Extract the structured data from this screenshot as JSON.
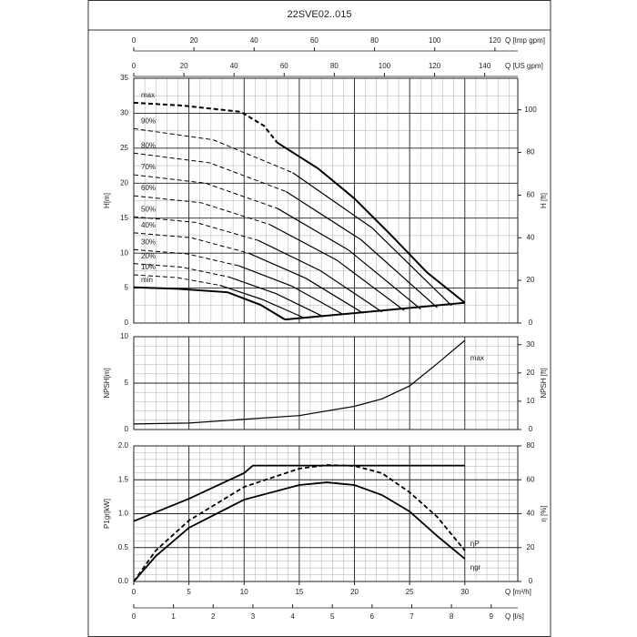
{
  "chart_data": [
    {
      "type": "line",
      "title": "22SVE02..015",
      "ylabel": "H[m]",
      "y2label": "H [ft]",
      "xlim": [
        0,
        34.8
      ],
      "xticks": [
        0,
        5,
        10,
        15,
        20,
        25,
        30
      ],
      "ylim": [
        0,
        35
      ],
      "yticks": [
        0,
        5,
        10,
        15,
        20,
        25,
        30,
        35
      ],
      "y2lim": [
        0,
        114.8
      ],
      "y2ticks": [
        0,
        20,
        40,
        60,
        80,
        100
      ],
      "x_imp": {
        "label": "Q [Imp gpm]",
        "xlim": [
          0,
          127.6
        ],
        "xticks": [
          0,
          20,
          40,
          60,
          80,
          100,
          120
        ]
      },
      "x_us": {
        "label": "Q [US gpm]",
        "xlim": [
          0,
          153.2
        ],
        "xticks": [
          0,
          20,
          40,
          60,
          80,
          100,
          120,
          140
        ]
      },
      "grid": true,
      "color": "#000000",
      "series": [
        {
          "name": "max",
          "dashed": {
            "x": [
              0,
              4.4,
              9.7,
              11.8,
              13
            ],
            "values": [
              31.5,
              31.1,
              30.2,
              28.2,
              25.8
            ]
          },
          "solid": {
            "x": [
              13,
              16.7,
              20,
              23.3,
              26.6,
              30
            ],
            "values": [
              25.8,
              22.1,
              17.8,
              12.6,
              7.2,
              2.9
            ]
          }
        },
        {
          "name": "90%",
          "dashed": {
            "x": [
              0,
              7.2,
              14.4
            ],
            "values": [
              27.8,
              26.2,
              21.5
            ]
          },
          "solid": {
            "x": [
              14.4,
              21.6,
              28.8
            ],
            "values": [
              21.5,
              13.6,
              2.5
            ]
          }
        },
        {
          "name": "80%",
          "dashed": {
            "x": [
              0,
              6.9,
              13.8
            ],
            "values": [
              24.3,
              22.9,
              18.8
            ]
          },
          "solid": {
            "x": [
              13.8,
              20.6,
              27.5
            ],
            "values": [
              18.8,
              11.9,
              2.2
            ]
          }
        },
        {
          "name": "70%",
          "dashed": {
            "x": [
              0,
              6.5,
              13
            ],
            "values": [
              21.2,
              20.0,
              16.4
            ]
          },
          "solid": {
            "x": [
              13,
              19.5,
              26
            ],
            "values": [
              16.4,
              10.4,
              2.0
            ]
          }
        },
        {
          "name": "60%",
          "dashed": {
            "x": [
              0,
              6.1,
              12.3
            ],
            "values": [
              18.2,
              17.2,
              14.1
            ]
          },
          "solid": {
            "x": [
              12.3,
              18.4,
              24.5
            ],
            "values": [
              14.1,
              9.0,
              1.8
            ]
          }
        },
        {
          "name": "50%",
          "dashed": {
            "x": [
              0,
              5.6,
              11.3
            ],
            "values": [
              15.2,
              14.4,
              11.8
            ]
          },
          "solid": {
            "x": [
              11.3,
              16.9,
              22.5
            ],
            "values": [
              11.8,
              7.5,
              1.6
            ]
          }
        },
        {
          "name": "40%",
          "dashed": {
            "x": [
              0,
              5.2,
              10.4
            ],
            "values": [
              12.9,
              12.2,
              10.0
            ]
          },
          "solid": {
            "x": [
              10.4,
              15.6,
              20.8
            ],
            "values": [
              10.0,
              6.4,
              1.4
            ]
          }
        },
        {
          "name": "30%",
          "dashed": {
            "x": [
              0,
              4.8,
              9.5
            ],
            "values": [
              10.5,
              9.9,
              8.2
            ]
          },
          "solid": {
            "x": [
              9.5,
              14.3,
              19
            ],
            "values": [
              8.2,
              5.3,
              1.2
            ]
          }
        },
        {
          "name": "20%",
          "dashed": {
            "x": [
              0,
              4.3,
              8.6
            ],
            "values": [
              8.5,
              8.0,
              6.6
            ]
          },
          "solid": {
            "x": [
              8.6,
              12.9,
              17.2
            ],
            "values": [
              6.6,
              4.2,
              0.9
            ]
          }
        },
        {
          "name": "10%",
          "dashed": {
            "x": [
              0,
              3.9,
              7.8
            ],
            "values": [
              6.9,
              6.5,
              5.4
            ]
          },
          "solid": {
            "x": [
              7.8,
              11.6,
              15.5
            ],
            "values": [
              5.4,
              3.4,
              0.7
            ]
          }
        },
        {
          "name": "min",
          "solid": {
            "x": [
              0,
              4,
              8.5,
              11.5,
              13.7
            ],
            "values": [
              5.1,
              4.9,
              4.4,
              2.6,
              0.5
            ]
          }
        },
        {
          "solid": {
            "x": [
              13.7,
              30
            ],
            "values": [
              0.5,
              2.9
            ]
          }
        }
      ]
    },
    {
      "type": "line",
      "ylabel": "NPSH[m]",
      "y2label": "NPSH [ft]",
      "xlim": [
        0,
        34.8
      ],
      "xticks": [
        0,
        5,
        10,
        15,
        20,
        25,
        30
      ],
      "ylim": [
        0,
        10
      ],
      "yticks": [
        0,
        5,
        10
      ],
      "y2lim": [
        0,
        32.8
      ],
      "y2ticks": [
        0,
        10,
        20,
        30
      ],
      "grid": true,
      "color": "#000000",
      "series": [
        {
          "name": "max",
          "solid": {
            "x": [
              0,
              5,
              10,
              15,
              20,
              22.5,
              25,
              27.5,
              30
            ],
            "values": [
              0.6,
              0.7,
              1.1,
              1.5,
              2.5,
              3.3,
              4.7,
              7.1,
              9.6
            ]
          }
        }
      ]
    },
    {
      "type": "line",
      "ylabel": "P1gr[kW]",
      "y2label": "η [%]",
      "xlabel": "Q [m³/h]",
      "xlim": [
        0,
        34.8
      ],
      "xticks": [
        0,
        5,
        10,
        15,
        20,
        25,
        30
      ],
      "ylim": [
        0,
        2.0
      ],
      "yticks": [
        {
          "value": 0,
          "label": "0.0"
        },
        0.5,
        {
          "value": 1,
          "label": "1.0"
        },
        1.5,
        {
          "value": 2,
          "label": "2.0"
        }
      ],
      "y2lim": [
        0,
        80
      ],
      "y2ticks": [
        0,
        20,
        40,
        60,
        80
      ],
      "x_ls": {
        "label": "Q [l/s]",
        "xlim": [
          0,
          9.67
        ],
        "xticks": [
          0,
          1,
          2,
          3,
          4,
          5,
          6,
          7,
          8,
          9
        ]
      },
      "grid": true,
      "color": "#000000",
      "series": [
        {
          "solid": {
            "x": [
              0,
              5,
              10,
              10.8,
              30
            ],
            "values": [
              0.89,
              1.22,
              1.6,
              1.71,
              1.71
            ]
          }
        },
        {
          "name": "ηP",
          "axis": "y2",
          "dashed": {
            "x": [
              0,
              2,
              5,
              10,
              15,
              17.5,
              20,
              22.5,
              25,
              27.5,
              30
            ],
            "values": [
              0,
              18.3,
              36,
              55.8,
              66.6,
              68.7,
              68.2,
              63.9,
              52.6,
              38.1,
              18.3
            ]
          }
        },
        {
          "name": "ηgr",
          "axis": "y2",
          "solid": {
            "x": [
              0,
              2,
              5,
              10,
              15,
              17.5,
              20,
              22.5,
              25,
              27.5,
              30
            ],
            "values": [
              0,
              15,
              31.7,
              48.3,
              56.9,
              58.5,
              56.9,
              51,
              41.3,
              26.8,
              13.4
            ]
          }
        }
      ]
    }
  ]
}
